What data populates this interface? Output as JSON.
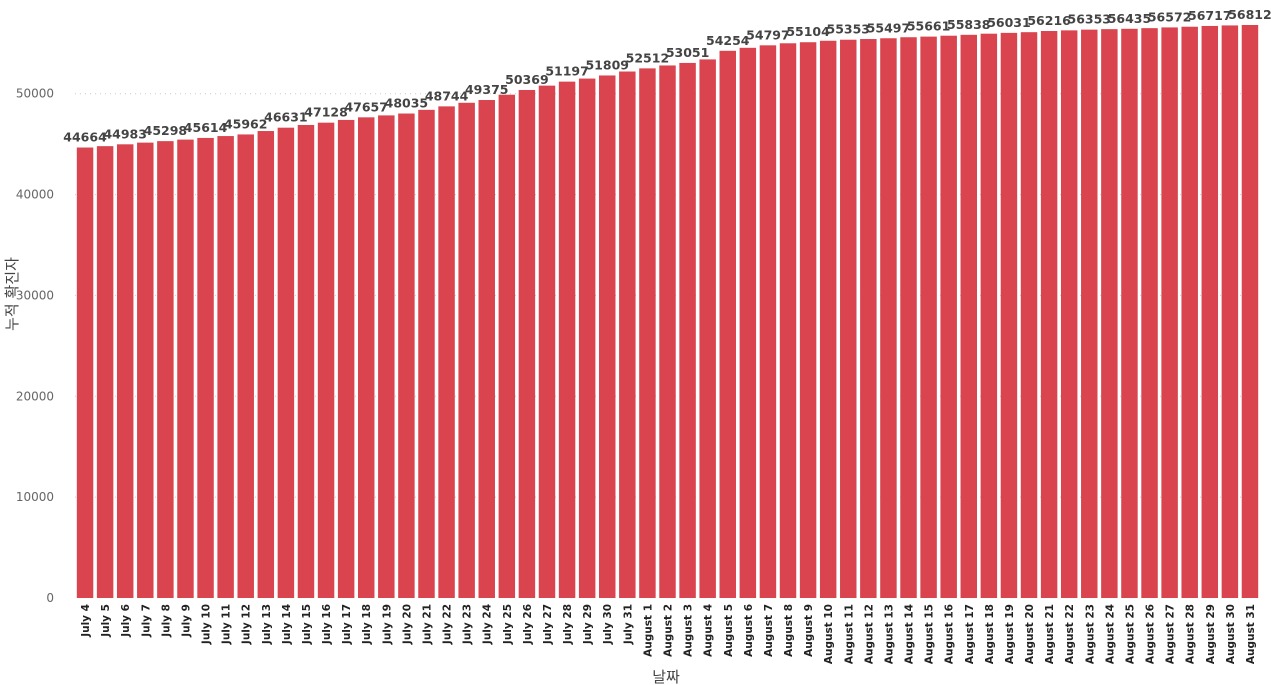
{
  "chart_data": {
    "type": "bar",
    "xlabel": "날짜",
    "ylabel": "누적 확진자",
    "ylim": [
      0,
      56812
    ],
    "yticks": [
      0,
      10000,
      20000,
      30000,
      40000,
      50000
    ],
    "grid": true,
    "bar_color": "#d9444f",
    "categories": [
      "July 4",
      "July 5",
      "July 6",
      "July 7",
      "July 8",
      "July 9",
      "July 10",
      "July 11",
      "July 12",
      "July 13",
      "July 14",
      "July 15",
      "July 16",
      "July 17",
      "July 18",
      "July 19",
      "July 20",
      "July 21",
      "July 22",
      "July 23",
      "July 24",
      "July 25",
      "July 26",
      "July 27",
      "July 28",
      "July 29",
      "July 30",
      "July 31",
      "August 1",
      "August 2",
      "August 3",
      "August 4",
      "August 5",
      "August 6",
      "August 7",
      "August 8",
      "August 9",
      "August 10",
      "August 11",
      "August 12",
      "August 13",
      "August 14",
      "August 15",
      "August 16",
      "August 17",
      "August 18",
      "August 19",
      "August 20",
      "August 21",
      "August 22",
      "August 23",
      "August 24",
      "August 25",
      "August 26",
      "August 27",
      "August 28",
      "August 29",
      "August 30",
      "August 31"
    ],
    "values": [
      44664,
      44800,
      44983,
      45150,
      45298,
      45450,
      45614,
      45800,
      45962,
      46300,
      46631,
      46900,
      47128,
      47400,
      47657,
      47850,
      48035,
      48400,
      48744,
      49100,
      49375,
      49900,
      50369,
      50800,
      51197,
      51500,
      51809,
      52200,
      52512,
      52800,
      53051,
      53400,
      54254,
      54550,
      54797,
      55000,
      55104,
      55250,
      55353,
      55420,
      55497,
      55600,
      55661,
      55750,
      55838,
      55950,
      56031,
      56100,
      56216,
      56280,
      56353,
      56400,
      56435,
      56500,
      56572,
      56640,
      56717,
      56770,
      56812
    ],
    "data_labels": [
      "44664",
      "",
      "44983",
      "",
      "45298",
      "",
      "45614",
      "",
      "45962",
      "",
      "46631",
      "",
      "47128",
      "",
      "47657",
      "",
      "48035",
      "",
      "48744",
      "",
      "49375",
      "",
      "50369",
      "",
      "51197",
      "",
      "51809",
      "",
      "52512",
      "",
      "53051",
      "",
      "54254",
      "",
      "54797",
      "",
      "55104",
      "",
      "55353",
      "",
      "55497",
      "",
      "55661",
      "",
      "55838",
      "",
      "56031",
      "",
      "56216",
      "",
      "56353",
      "",
      "56435",
      "",
      "56572",
      "",
      "56717",
      "",
      "56812"
    ]
  }
}
